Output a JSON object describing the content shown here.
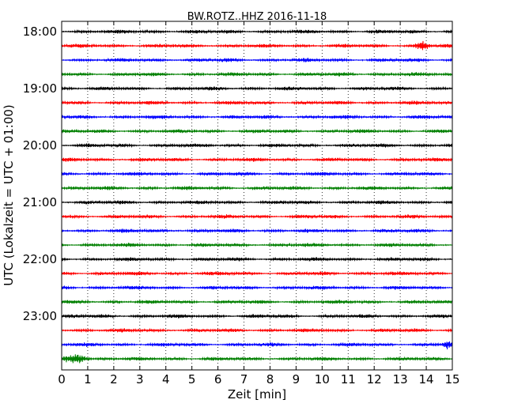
{
  "chart_data": {
    "type": "line",
    "title": "BW.ROTZ..HHZ 2016-11-18",
    "xlabel": "Zeit  [min]",
    "ylabel": "UTC (Lokalzeit = UTC + 01:00)",
    "xlim": [
      0,
      15
    ],
    "x_ticks": [
      "0",
      "1",
      "2",
      "3",
      "4",
      "5",
      "6",
      "7",
      "8",
      "9",
      "10",
      "11",
      "12",
      "13",
      "14",
      "15"
    ],
    "y_ticks": [
      "18:00",
      "19:00",
      "20:00",
      "21:00",
      "22:00",
      "23:00"
    ],
    "grid": "vertical dotted",
    "traces_per_hour": 4,
    "trace_minutes": 15,
    "start_time": "18:00",
    "end_time": "24:00",
    "series_colors": [
      "#000000",
      "#ff0000",
      "#0000ff",
      "#008000"
    ],
    "annotations": [
      {
        "time": "23:45",
        "event": "large burst",
        "x_range": [
          0.0,
          1.2
        ]
      },
      {
        "time": "23:30",
        "event": "burst",
        "x_range": [
          14.6,
          15.0
        ]
      },
      {
        "time": "18:15",
        "event": "burst",
        "x_range": [
          13.5,
          14.2
        ]
      }
    ]
  }
}
